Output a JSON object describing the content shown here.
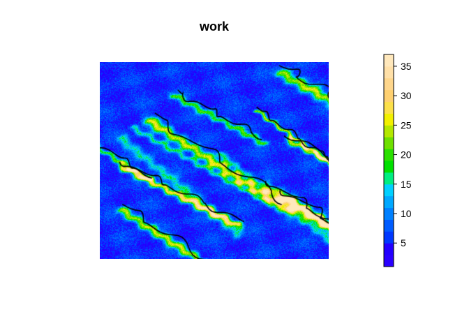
{
  "chart_data": {
    "type": "heatmap",
    "title": "work",
    "xlabel": "",
    "ylabel": "",
    "colorbar": {
      "range": [
        1,
        37
      ],
      "ticks": [
        5,
        10,
        15,
        20,
        25,
        30,
        35
      ],
      "tick_labels": [
        "5",
        "10",
        "15",
        "20",
        "25",
        "30",
        "35"
      ],
      "breaks": [
        1,
        3,
        5,
        7,
        9,
        11,
        13,
        15,
        17,
        19,
        21,
        23,
        25,
        27,
        29,
        31,
        33,
        35,
        37
      ],
      "colors": [
        "#2a00ff",
        "#2200ff",
        "#0038ff",
        "#005cff",
        "#0080ff",
        "#00a8ff",
        "#00d0ff",
        "#00ee80",
        "#00e000",
        "#2ae000",
        "#6ee000",
        "#b4e800",
        "#f2f000",
        "#fce04a",
        "#fed070",
        "#fed68c",
        "#ffe0a8",
        "#ffe8bc"
      ]
    },
    "contour_color": "#000000",
    "description_values": "raster of values 1–37, mostly low (blue), ridge lines 15–25 (green)"
  }
}
